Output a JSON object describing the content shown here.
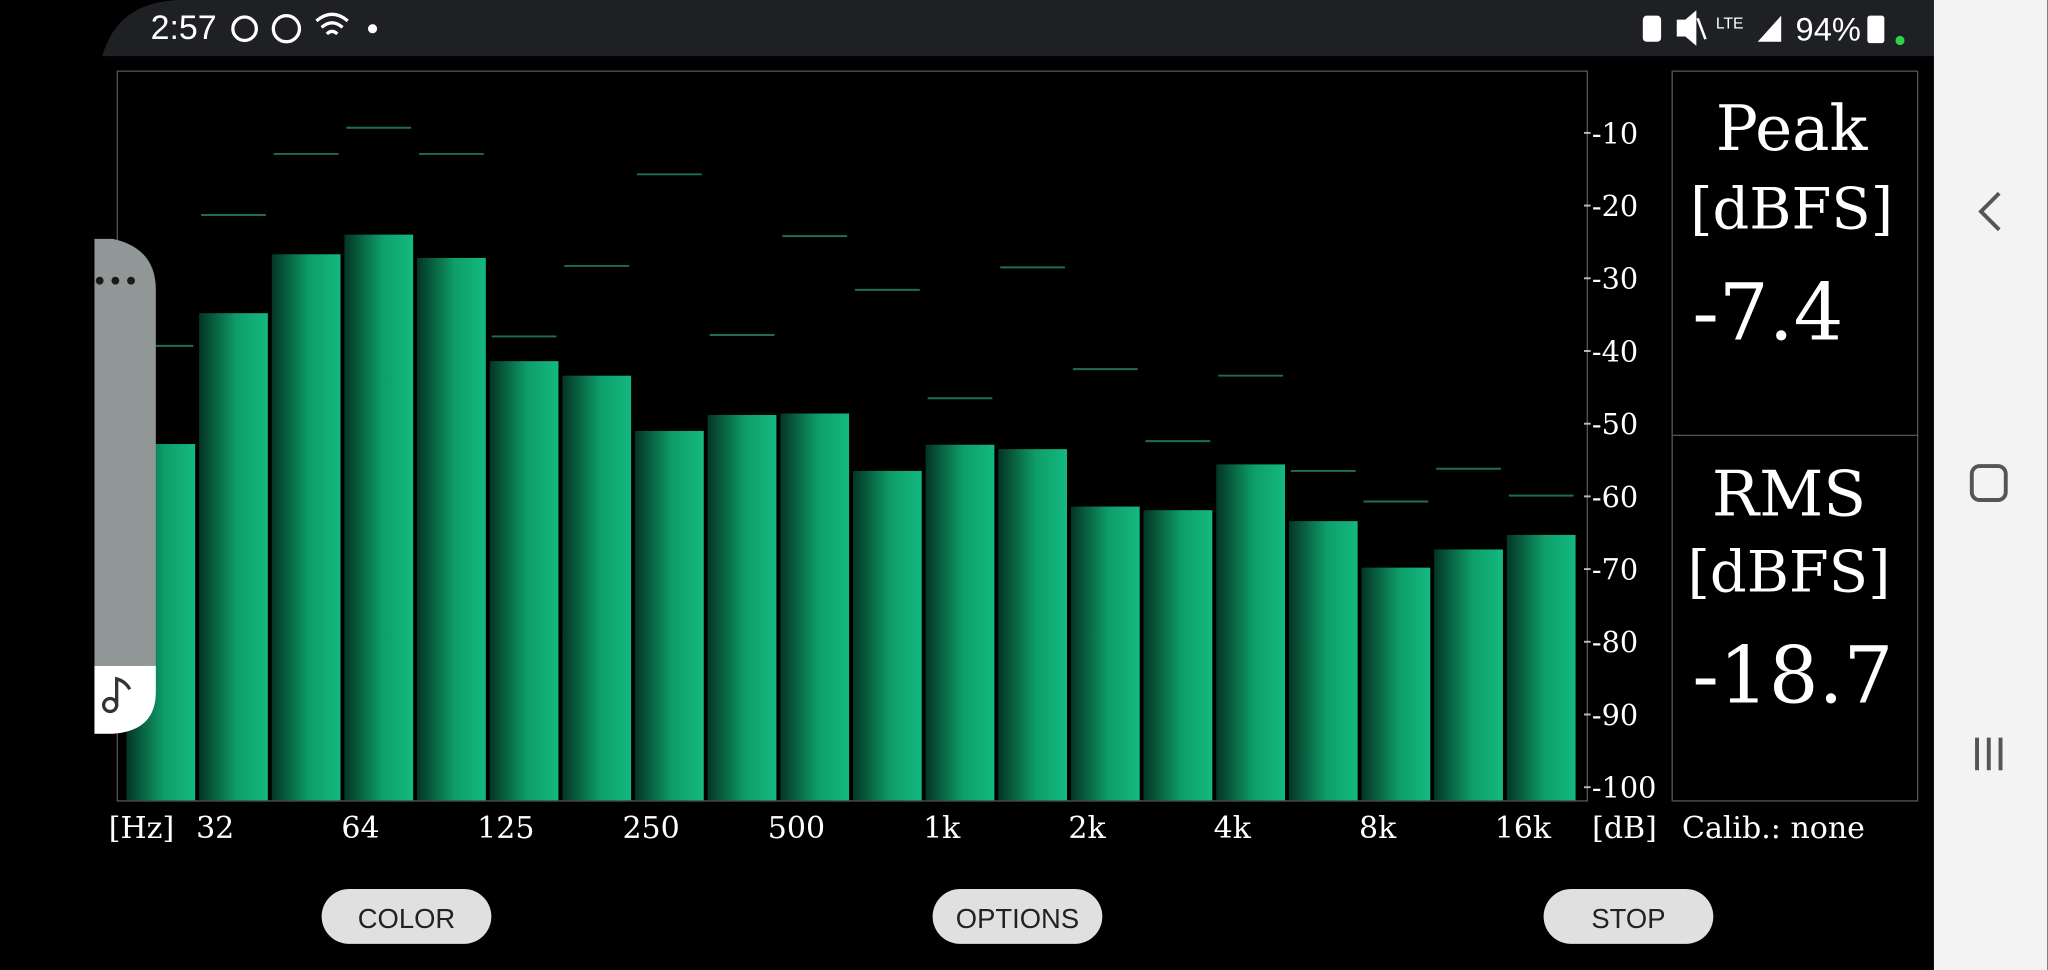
{
  "status_bar": {
    "time": "2:57",
    "network": "LTE",
    "battery": "94%"
  },
  "chart_data": {
    "type": "bar",
    "categories": [
      null,
      "32",
      null,
      "64",
      null,
      "125",
      null,
      "250",
      null,
      "500",
      null,
      "1k",
      null,
      "2k",
      null,
      "4k",
      null,
      "8k",
      null,
      "16k"
    ],
    "series": [
      {
        "color": "#10b379",
        "values": [
          -52.8,
          -34.8,
          -26.7,
          -24.0,
          -27.2,
          -41.4,
          -43.4,
          -51.0,
          -48.8,
          -48.6,
          -56.5,
          -52.9,
          -53.5,
          -61.4,
          -61.9,
          -55.6,
          -63.4,
          -69.8,
          -67.3,
          -65.3
        ]
      },
      {
        "color": "#1f6e4e",
        "values": [
          -39.3,
          -21.3,
          -12.9,
          -9.3,
          -12.9,
          -38.0,
          -28.3,
          -15.7,
          -37.8,
          -24.2,
          -31.6,
          -46.5,
          -28.5,
          -42.5,
          -52.4,
          -43.4,
          -56.5,
          -60.7,
          -56.2,
          -59.9
        ]
      }
    ],
    "x_label": "[Hz]",
    "y_label": "[dB]",
    "ylim": [
      -101.8,
      -1.6
    ],
    "yticks": [
      -10,
      -20,
      -30,
      -40,
      -50,
      -60,
      -70,
      -80,
      -90,
      -100
    ]
  },
  "panel": {
    "peak_label": "Peak",
    "peak_unit": "[dBFS]",
    "peak_value": "-7.4",
    "rms_label": "RMS",
    "rms_unit": "[dBFS]",
    "rms_value": "-18.7",
    "calibration": "Calib.: none"
  },
  "buttons": [
    "COLOR",
    "OPTIONS",
    "STOP"
  ]
}
